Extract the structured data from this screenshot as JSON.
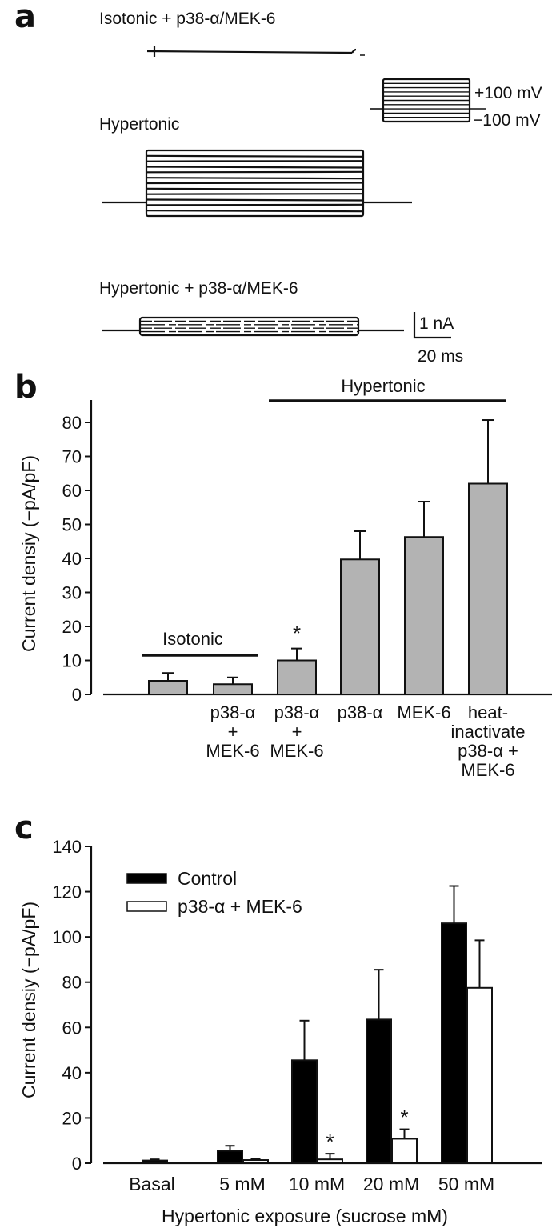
{
  "panel_a": {
    "label": "a",
    "trace_labels": [
      "Isotonic + p38-α/MEK-6",
      "Hypertonic",
      "Hypertonic + p38-α/MEK-6"
    ],
    "protocol_labels": [
      "+100 mV",
      "−100 mV"
    ],
    "scale_bar": {
      "current": "1 nA",
      "time": "20 ms"
    }
  },
  "chart_data": [
    {
      "panel": "b",
      "type": "bar",
      "ylabel": "Current densiy (−pA/pF)",
      "ylim": [
        0,
        85
      ],
      "yticks": [
        0,
        10,
        20,
        30,
        40,
        50,
        60,
        70,
        80
      ],
      "categories": [
        [],
        [
          "p38-α",
          "+",
          "MEK-6"
        ],
        [
          "p38-α",
          "+",
          "MEK-6"
        ],
        [
          "p38-α"
        ],
        [
          "MEK-6"
        ],
        [
          "heat-",
          "inactivate",
          "p38-α +",
          "MEK-6"
        ]
      ],
      "values": [
        4,
        3,
        10,
        39.7,
        46.3,
        62
      ],
      "error_upper": [
        6.3,
        5,
        13.5,
        48,
        56.7,
        80.7
      ],
      "significance": [
        "",
        "",
        "*",
        "",
        "",
        ""
      ],
      "bar_color": "#b3b3b3",
      "group_brackets": [
        {
          "label": "Isotonic",
          "bars": [
            0,
            1
          ]
        },
        {
          "label": "Hypertonic",
          "bars": [
            2,
            5
          ]
        }
      ],
      "grid": false
    },
    {
      "panel": "c",
      "type": "bar",
      "xlabel": "Hypertonic exposure (sucrose mM)",
      "ylabel": "Current densiy (−pA/pF)",
      "ylim": [
        0,
        140
      ],
      "yticks": [
        0,
        20,
        40,
        60,
        80,
        100,
        120,
        140
      ],
      "categories": [
        "Basal",
        "5 mM",
        "10 mM",
        "20 mM",
        "50 mM"
      ],
      "series": [
        {
          "name": "Control",
          "color": "#000000",
          "values": [
            1.2,
            5.5,
            45.5,
            63.5,
            106
          ],
          "error_upper": [
            1.7,
            7.7,
            63,
            85.5,
            122.5
          ],
          "significance": [
            "",
            "",
            "",
            "",
            ""
          ]
        },
        {
          "name": "p38-α + MEK-6",
          "color": "#ffffff",
          "values": [
            null,
            1.4,
            1.7,
            10.8,
            77.5
          ],
          "error_upper": [
            null,
            1.8,
            4.2,
            15,
            98.5
          ],
          "significance": [
            "",
            "",
            "*",
            "*",
            ""
          ]
        }
      ],
      "legend": "top-left",
      "grid": false
    }
  ]
}
